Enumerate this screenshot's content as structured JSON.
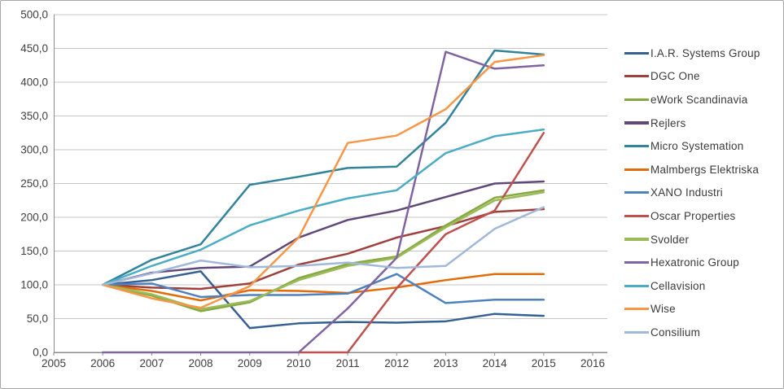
{
  "figure": {
    "title": "",
    "background": "#ffffff",
    "border_color": "#a6a6a6",
    "gridline_color": "#c6c6c6",
    "axis_line_color": "#8c8c8c",
    "tick_label_color": "#3f3f3f"
  },
  "chart_data": {
    "type": "line",
    "x": [
      2006,
      2007,
      2008,
      2009,
      2010,
      2011,
      2012,
      2013,
      2014,
      2015
    ],
    "xlim": [
      2005,
      2016
    ],
    "ylim": [
      0,
      500
    ],
    "y_tick_step": 50,
    "grid": "horizontal",
    "legend_position": "right",
    "x_tick_labels": [
      "2005",
      "2006",
      "2007",
      "2008",
      "2009",
      "2010",
      "2011",
      "2012",
      "2013",
      "2014",
      "2015",
      "2016"
    ],
    "x_tick_values": [
      2005,
      2006,
      2007,
      2008,
      2009,
      2010,
      2011,
      2012,
      2013,
      2014,
      2015,
      2016
    ],
    "y_tick_labels": [
      "0,0",
      "50,0",
      "100,0",
      "150,0",
      "200,0",
      "250,0",
      "300,0",
      "350,0",
      "400,0",
      "450,0",
      "500,0"
    ],
    "y_tick_values": [
      0,
      50,
      100,
      150,
      200,
      250,
      300,
      350,
      400,
      450,
      500
    ],
    "series": [
      {
        "name": "I.A.R. Systems Group",
        "color": "#366092",
        "values": [
          100,
          107,
          120,
          36,
          43,
          45,
          44,
          46,
          57,
          54
        ]
      },
      {
        "name": "DGC One",
        "color": "#9E413D",
        "values": [
          100,
          96,
          94,
          102,
          130,
          146,
          170,
          187,
          208,
          212
        ]
      },
      {
        "name": "eWork Scandinavia",
        "color": "#86A840",
        "values": [
          100,
          84,
          61,
          74,
          110,
          131,
          142,
          188,
          229,
          240
        ]
      },
      {
        "name": "Rejlers",
        "color": "#60497A",
        "values": [
          100,
          118,
          125,
          127,
          170,
          196,
          210,
          230,
          250,
          253
        ]
      },
      {
        "name": "Micro Systemation",
        "color": "#31849B",
        "values": [
          100,
          137,
          160,
          248,
          260,
          273,
          275,
          340,
          447,
          441
        ]
      },
      {
        "name": "Malmbergs Elektriska",
        "color": "#E26B0A",
        "values": [
          100,
          91,
          77,
          92,
          91,
          88,
          96,
          107,
          116,
          116
        ]
      },
      {
        "name": "XANO Industri",
        "color": "#4F81BD",
        "values": [
          100,
          102,
          82,
          85,
          85,
          87,
          116,
          73,
          78,
          78
        ]
      },
      {
        "name": "Oscar Properties",
        "color": "#C0504D",
        "values": [
          null,
          null,
          null,
          null,
          0,
          0,
          95,
          175,
          210,
          325
        ]
      },
      {
        "name": "Svolder",
        "color": "#9BBB59",
        "values": [
          100,
          86,
          64,
          76,
          107,
          128,
          140,
          185,
          225,
          237
        ]
      },
      {
        "name": "Hexatronic Group",
        "color": "#8064A2",
        "values": [
          0,
          0,
          0,
          0,
          0,
          65,
          140,
          445,
          420,
          425
        ]
      },
      {
        "name": "Cellavision",
        "color": "#4BACC6",
        "values": [
          100,
          128,
          152,
          188,
          210,
          228,
          240,
          295,
          320,
          330
        ]
      },
      {
        "name": "Wise",
        "color": "#F79646",
        "values": [
          100,
          80,
          66,
          98,
          170,
          310,
          321,
          360,
          430,
          440
        ]
      },
      {
        "name": "Consilium",
        "color": "#A2B8D8",
        "values": [
          100,
          117,
          136,
          126,
          128,
          133,
          125,
          128,
          183,
          215
        ]
      }
    ]
  }
}
